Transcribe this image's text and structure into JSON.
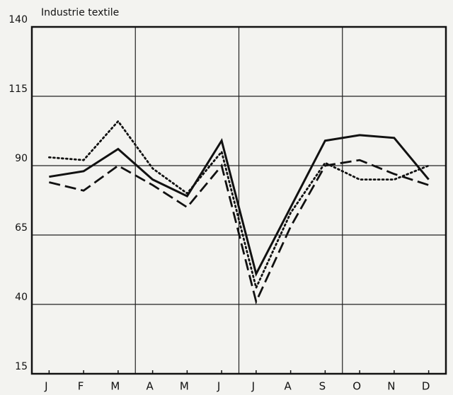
{
  "chart_data": {
    "type": "line",
    "title": "Industrie textile",
    "categories": [
      "J",
      "F",
      "M",
      "A",
      "M",
      "J",
      "J",
      "A",
      "S",
      "O",
      "N",
      "D"
    ],
    "series": [
      {
        "color": "#111111",
        "style": "solid",
        "values": [
          86,
          88,
          96,
          85,
          79,
          99,
          51,
          75,
          99,
          101,
          100,
          85
        ]
      },
      {
        "color": "#111111",
        "style": "dashed",
        "values": [
          84,
          81,
          90,
          83,
          75,
          90,
          41,
          68,
          90,
          92,
          87,
          83
        ]
      },
      {
        "color": "#111111",
        "style": "dotted",
        "values": [
          93,
          92,
          106,
          89,
          80,
          95,
          46,
          73,
          91,
          85,
          85,
          90
        ]
      }
    ],
    "ylim": [
      15,
      140
    ],
    "yticks": [
      15,
      40,
      65,
      90,
      115,
      140
    ],
    "grid": true
  }
}
